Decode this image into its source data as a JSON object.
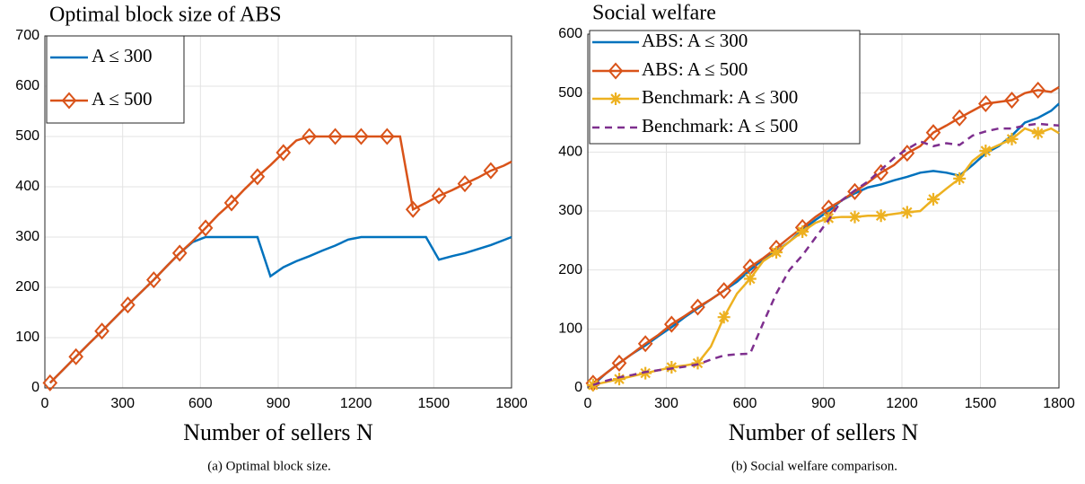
{
  "chart_data": [
    {
      "type": "line",
      "title": "Optimal block size of ABS",
      "xlabel": "Number of sellers N",
      "caption": "(a) Optimal block size.",
      "xlim": [
        0,
        1800
      ],
      "xticks": [
        0,
        300,
        600,
        900,
        1200,
        1500,
        1800
      ],
      "ylim": [
        0,
        700
      ],
      "yticks": [
        0,
        100,
        200,
        300,
        400,
        500,
        600,
        700
      ],
      "grid": true,
      "legend": "upper left",
      "x": [
        20,
        70,
        120,
        170,
        220,
        270,
        320,
        370,
        420,
        470,
        520,
        570,
        620,
        670,
        720,
        770,
        820,
        870,
        920,
        970,
        1020,
        1070,
        1120,
        1170,
        1220,
        1270,
        1320,
        1370,
        1420,
        1470,
        1520,
        1570,
        1620,
        1670,
        1720,
        1770,
        1800
      ],
      "series": [
        {
          "name": "A ≤ 300",
          "color": "#0072BD",
          "values": [
            10,
            36,
            62,
            88,
            113,
            139,
            165,
            190,
            215,
            242,
            268,
            290,
            300,
            300,
            300,
            300,
            300,
            222,
            240,
            252,
            262,
            273,
            283,
            295,
            300,
            300,
            300,
            300,
            300,
            300,
            255,
            262,
            268,
            276,
            284,
            294,
            300
          ]
        },
        {
          "name": "A ≤ 500",
          "color": "#D95319",
          "marker": "diamond",
          "marker_every": 2,
          "values": [
            10,
            36,
            62,
            88,
            113,
            139,
            165,
            190,
            215,
            242,
            268,
            292,
            318,
            345,
            368,
            395,
            420,
            443,
            468,
            492,
            500,
            500,
            500,
            500,
            500,
            500,
            500,
            500,
            355,
            368,
            382,
            393,
            406,
            418,
            432,
            442,
            450
          ]
        }
      ]
    },
    {
      "type": "line",
      "title": "Social welfare",
      "xlabel": "Number of sellers N",
      "caption": "(b) Social welfare comparison.",
      "xlim": [
        0,
        1800
      ],
      "xticks": [
        0,
        300,
        600,
        900,
        1200,
        1500,
        1800
      ],
      "ylim": [
        0,
        600
      ],
      "yticks": [
        0,
        100,
        200,
        300,
        400,
        500,
        600
      ],
      "grid": true,
      "legend": "upper left",
      "x": [
        20,
        70,
        120,
        170,
        220,
        270,
        320,
        370,
        420,
        470,
        520,
        570,
        620,
        670,
        720,
        770,
        820,
        870,
        920,
        970,
        1020,
        1070,
        1120,
        1170,
        1220,
        1270,
        1320,
        1370,
        1420,
        1470,
        1520,
        1570,
        1620,
        1670,
        1720,
        1770,
        1800
      ],
      "series": [
        {
          "name": "ABS: A ≤ 300",
          "color": "#0072BD",
          "values": [
            5,
            25,
            42,
            58,
            72,
            88,
            103,
            120,
            135,
            150,
            165,
            180,
            200,
            218,
            232,
            248,
            268,
            285,
            300,
            318,
            330,
            340,
            345,
            352,
            358,
            365,
            368,
            365,
            360,
            378,
            398,
            410,
            428,
            450,
            458,
            470,
            482
          ]
        },
        {
          "name": "ABS: A ≤ 500",
          "color": "#D95319",
          "marker": "diamond",
          "marker_every": 2,
          "values": [
            8,
            25,
            42,
            58,
            75,
            90,
            108,
            122,
            137,
            150,
            165,
            185,
            205,
            220,
            237,
            255,
            272,
            290,
            305,
            318,
            333,
            348,
            365,
            378,
            398,
            410,
            433,
            445,
            458,
            470,
            482,
            485,
            488,
            500,
            505,
            502,
            510
          ]
        },
        {
          "name": "Benchmark: A ≤ 300",
          "color": "#EDB120",
          "marker": "asterisk",
          "marker_every": 2,
          "values": [
            5,
            10,
            15,
            20,
            25,
            30,
            35,
            38,
            42,
            70,
            120,
            160,
            185,
            215,
            230,
            248,
            265,
            280,
            288,
            290,
            290,
            292,
            292,
            295,
            298,
            300,
            320,
            338,
            355,
            385,
            402,
            412,
            422,
            440,
            432,
            440,
            432
          ]
        },
        {
          "name": "Benchmark: A ≤ 500",
          "color": "#7E2F8E",
          "dash": true,
          "values": [
            5,
            12,
            18,
            22,
            27,
            30,
            33,
            36,
            40,
            48,
            55,
            57,
            58,
            110,
            160,
            200,
            225,
            255,
            285,
            318,
            335,
            350,
            370,
            390,
            405,
            418,
            410,
            415,
            412,
            428,
            435,
            440,
            440,
            445,
            448,
            446,
            445
          ]
        }
      ]
    }
  ]
}
